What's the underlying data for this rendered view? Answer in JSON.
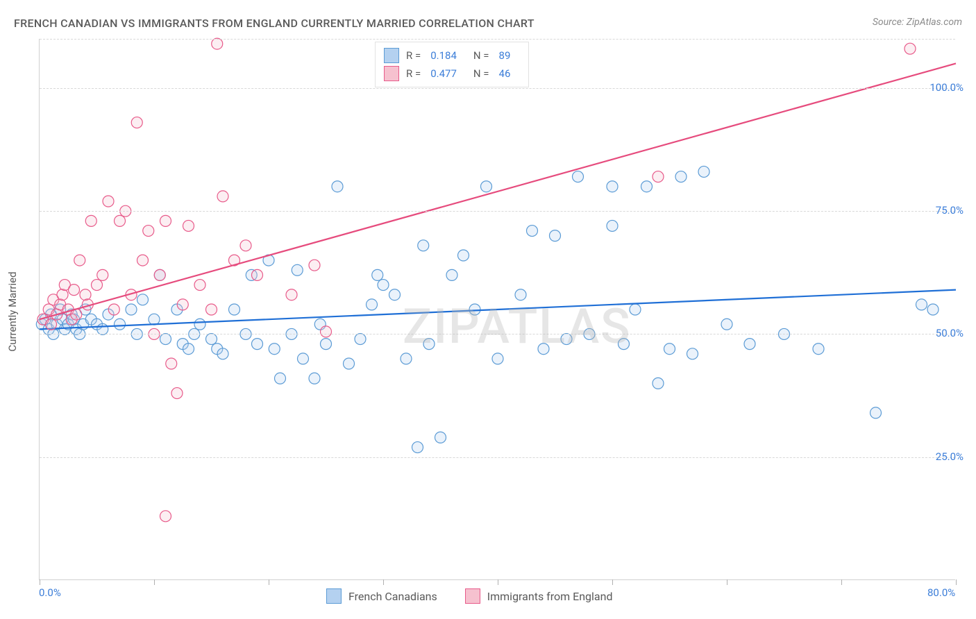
{
  "title": "FRENCH CANADIAN VS IMMIGRANTS FROM ENGLAND CURRENTLY MARRIED CORRELATION CHART",
  "source": "Source: ZipAtlas.com",
  "watermark": "ZIPATLAS",
  "yaxis_title": "Currently Married",
  "chart": {
    "type": "scatter",
    "xlim": [
      0,
      80
    ],
    "ylim": [
      0,
      110
    ],
    "x_ticks": [
      0,
      10,
      20,
      30,
      40,
      50,
      60,
      70,
      80
    ],
    "y_gridlines": [
      25,
      50,
      75,
      100,
      110
    ],
    "y_labels": [
      {
        "v": 25,
        "t": "25.0%"
      },
      {
        "v": 50,
        "t": "50.0%"
      },
      {
        "v": 75,
        "t": "75.0%"
      },
      {
        "v": 100,
        "t": "100.0%"
      }
    ],
    "x_labels": [
      {
        "v": 0,
        "t": "0.0%"
      },
      {
        "v": 80,
        "t": "80.0%"
      }
    ],
    "background_color": "#ffffff",
    "grid_color": "#d8d8d8",
    "axis_label_color": "#3b7dd8",
    "marker_radius": 8,
    "marker_fill_opacity": 0.28,
    "marker_stroke_width": 1.2,
    "trend_line_width": 2.2,
    "series": [
      {
        "name": "French Canadians",
        "color_fill": "#b4d1f0",
        "color_stroke": "#5b9bd5",
        "trend_color": "#1f6fd6",
        "R": "0.184",
        "N": "89",
        "trend": {
          "x1": 0,
          "y1": 51,
          "x2": 80,
          "y2": 59
        },
        "points": [
          [
            0.2,
            52
          ],
          [
            0.5,
            53
          ],
          [
            0.8,
            51
          ],
          [
            1,
            54
          ],
          [
            1.2,
            50
          ],
          [
            1.5,
            52
          ],
          [
            1.8,
            55
          ],
          [
            2,
            53
          ],
          [
            2.2,
            51
          ],
          [
            2.5,
            52
          ],
          [
            2.8,
            54
          ],
          [
            3,
            53
          ],
          [
            3.2,
            51
          ],
          [
            3.5,
            50
          ],
          [
            3.8,
            52
          ],
          [
            4,
            55
          ],
          [
            4.5,
            53
          ],
          [
            5,
            52
          ],
          [
            5.5,
            51
          ],
          [
            6,
            54
          ],
          [
            7,
            52
          ],
          [
            8,
            55
          ],
          [
            8.5,
            50
          ],
          [
            9,
            57
          ],
          [
            10,
            53
          ],
          [
            10.5,
            62
          ],
          [
            11,
            49
          ],
          [
            12,
            55
          ],
          [
            12.5,
            48
          ],
          [
            13,
            47
          ],
          [
            13.5,
            50
          ],
          [
            14,
            52
          ],
          [
            15,
            49
          ],
          [
            15.5,
            47
          ],
          [
            16,
            46
          ],
          [
            17,
            55
          ],
          [
            18,
            50
          ],
          [
            18.5,
            62
          ],
          [
            19,
            48
          ],
          [
            20,
            65
          ],
          [
            20.5,
            47
          ],
          [
            21,
            41
          ],
          [
            22,
            50
          ],
          [
            22.5,
            63
          ],
          [
            23,
            45
          ],
          [
            24,
            41
          ],
          [
            24.5,
            52
          ],
          [
            25,
            48
          ],
          [
            26,
            80
          ],
          [
            27,
            44
          ],
          [
            28,
            49
          ],
          [
            29,
            56
          ],
          [
            29.5,
            62
          ],
          [
            30,
            60
          ],
          [
            31,
            58
          ],
          [
            32,
            45
          ],
          [
            33,
            27
          ],
          [
            33.5,
            68
          ],
          [
            34,
            48
          ],
          [
            35,
            29
          ],
          [
            36,
            62
          ],
          [
            37,
            66
          ],
          [
            38,
            55
          ],
          [
            39,
            80
          ],
          [
            40,
            45
          ],
          [
            42,
            58
          ],
          [
            43,
            71
          ],
          [
            44,
            47
          ],
          [
            45,
            70
          ],
          [
            46,
            49
          ],
          [
            47,
            82
          ],
          [
            48,
            50
          ],
          [
            50,
            72
          ],
          [
            51,
            48
          ],
          [
            52,
            55
          ],
          [
            53,
            80
          ],
          [
            54,
            40
          ],
          [
            55,
            47
          ],
          [
            56,
            82
          ],
          [
            57,
            46
          ],
          [
            58,
            83
          ],
          [
            60,
            52
          ],
          [
            65,
            50
          ],
          [
            68,
            47
          ],
          [
            73,
            34
          ],
          [
            77,
            56
          ],
          [
            78,
            55
          ],
          [
            62,
            48
          ],
          [
            50,
            80
          ]
        ]
      },
      {
        "name": "Immigrants from England",
        "color_fill": "#f6c1cf",
        "color_stroke": "#e85a8a",
        "trend_color": "#e64b7d",
        "R": "0.477",
        "N": "46",
        "trend": {
          "x1": 0,
          "y1": 53,
          "x2": 80,
          "y2": 105
        },
        "points": [
          [
            0.3,
            53
          ],
          [
            0.8,
            55
          ],
          [
            1,
            52
          ],
          [
            1.2,
            57
          ],
          [
            1.5,
            54
          ],
          [
            1.8,
            56
          ],
          [
            2,
            58
          ],
          [
            2.2,
            60
          ],
          [
            2.5,
            55
          ],
          [
            2.8,
            53
          ],
          [
            3,
            59
          ],
          [
            3.2,
            54
          ],
          [
            3.5,
            65
          ],
          [
            4,
            58
          ],
          [
            4.2,
            56
          ],
          [
            4.5,
            73
          ],
          [
            5,
            60
          ],
          [
            5.5,
            62
          ],
          [
            6,
            77
          ],
          [
            6.5,
            55
          ],
          [
            7,
            73
          ],
          [
            7.5,
            75
          ],
          [
            8,
            58
          ],
          [
            8.5,
            93
          ],
          [
            9,
            65
          ],
          [
            9.5,
            71
          ],
          [
            10,
            50
          ],
          [
            10.5,
            62
          ],
          [
            11,
            73
          ],
          [
            11.5,
            44
          ],
          [
            12,
            38
          ],
          [
            12.5,
            56
          ],
          [
            13,
            72
          ],
          [
            14,
            60
          ],
          [
            15,
            55
          ],
          [
            15.5,
            109
          ],
          [
            16,
            78
          ],
          [
            17,
            65
          ],
          [
            18,
            68
          ],
          [
            19,
            62
          ],
          [
            22,
            58
          ],
          [
            24,
            64
          ],
          [
            25,
            50.5
          ],
          [
            11,
            13
          ],
          [
            54,
            82
          ],
          [
            76,
            108
          ]
        ]
      }
    ]
  },
  "legend_top_labels": {
    "R": "R =",
    "N": "N ="
  },
  "legend_bottom": [
    {
      "label": "French Canadians",
      "series_idx": 0
    },
    {
      "label": "Immigrants from England",
      "series_idx": 1
    }
  ]
}
